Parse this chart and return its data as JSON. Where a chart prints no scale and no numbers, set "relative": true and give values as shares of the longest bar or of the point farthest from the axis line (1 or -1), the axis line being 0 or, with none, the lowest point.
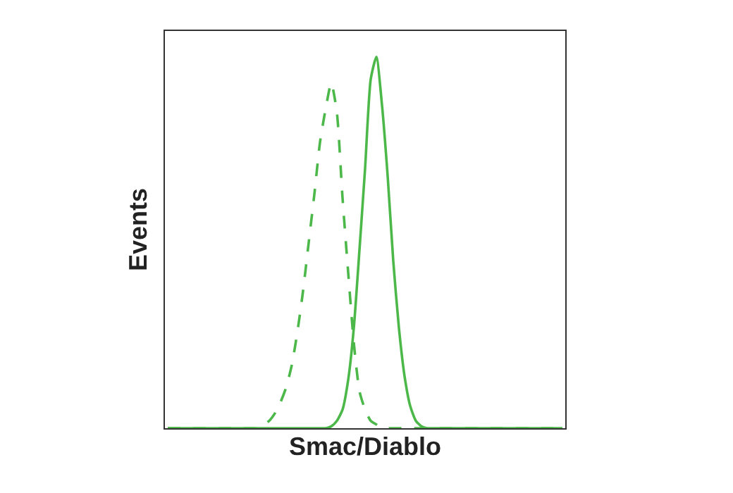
{
  "chart_data": {
    "type": "line",
    "xlabel": "Smac/Diablo",
    "ylabel": "Events",
    "relative": true,
    "tick_labels": false,
    "marker": "none",
    "categories": [
      null,
      null,
      null,
      null,
      null,
      null,
      null,
      null,
      null,
      null,
      null,
      null,
      null,
      null,
      null,
      null,
      null,
      null,
      null,
      null,
      null,
      null,
      null,
      null,
      null,
      null,
      null,
      null,
      null,
      null,
      null,
      null,
      null,
      null,
      null,
      null,
      null,
      null,
      null,
      null,
      null,
      null,
      null,
      null,
      null,
      null,
      null,
      null,
      null,
      null,
      null,
      null,
      null,
      null,
      null,
      null,
      null,
      null,
      null,
      null,
      null,
      null,
      null,
      null,
      null,
      null,
      null,
      null,
      null,
      null,
      null
    ],
    "series": [
      {
        "color": "#4db84a",
        "line_style": "dashed",
        "values": [
          0,
          0,
          0,
          0,
          0,
          0,
          0,
          0,
          0,
          0,
          0,
          0,
          0,
          0,
          0,
          0,
          0,
          0.01,
          0.02,
          0.04,
          0.07,
          0.11,
          0.17,
          0.26,
          0.37,
          0.5,
          0.63,
          0.77,
          0.86,
          0.93,
          0.85,
          0.62,
          0.42,
          0.23,
          0.1,
          0.05,
          0.02,
          0.01,
          0,
          0,
          0,
          0,
          0,
          0,
          0,
          0,
          0,
          0,
          0,
          0,
          0,
          0,
          0,
          0,
          0,
          0,
          0,
          0,
          0,
          0,
          0,
          0,
          0,
          0,
          0,
          0,
          0,
          0,
          0,
          0,
          0
        ]
      },
      {
        "color": "#4db84a",
        "line_style": "solid",
        "values": [
          0,
          0,
          0,
          0,
          0,
          0,
          0,
          0,
          0,
          0,
          0,
          0,
          0,
          0,
          0,
          0,
          0,
          0,
          0,
          0,
          0,
          0,
          0,
          0,
          0,
          0,
          0,
          0,
          0,
          0.005,
          0.02,
          0.05,
          0.13,
          0.27,
          0.48,
          0.7,
          0.94,
          1,
          0.87,
          0.68,
          0.45,
          0.27,
          0.14,
          0.06,
          0.02,
          0.005,
          0,
          0,
          0,
          0,
          0,
          0,
          0,
          0,
          0,
          0,
          0,
          0,
          0,
          0,
          0,
          0,
          0,
          0,
          0,
          0,
          0,
          0,
          0,
          0,
          0
        ]
      }
    ]
  }
}
